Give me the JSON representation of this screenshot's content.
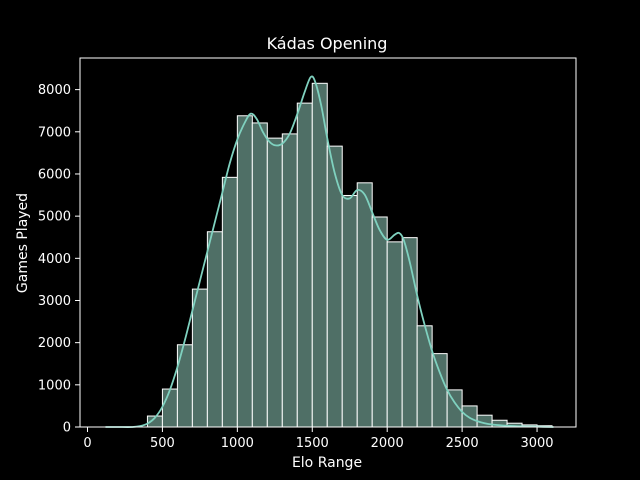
{
  "chart_data": {
    "type": "bar",
    "title": "Kádas Opening",
    "xlabel": "Elo Range",
    "ylabel": "Games Played",
    "xlim": [
      -50,
      3260
    ],
    "ylim": [
      0,
      8750
    ],
    "xticks": [
      0,
      500,
      1000,
      1500,
      2000,
      2500,
      3000
    ],
    "yticks": [
      0,
      1000,
      2000,
      3000,
      4000,
      5000,
      6000,
      7000,
      8000
    ],
    "bin_width": 100,
    "bins": [
      {
        "x0": 400,
        "x1": 500,
        "value": 260
      },
      {
        "x0": 500,
        "x1": 600,
        "value": 900
      },
      {
        "x0": 600,
        "x1": 700,
        "value": 1950
      },
      {
        "x0": 700,
        "x1": 800,
        "value": 3270
      },
      {
        "x0": 800,
        "x1": 900,
        "value": 4630
      },
      {
        "x0": 900,
        "x1": 1000,
        "value": 5920
      },
      {
        "x0": 1000,
        "x1": 1100,
        "value": 7380
      },
      {
        "x0": 1100,
        "x1": 1200,
        "value": 7210
      },
      {
        "x0": 1200,
        "x1": 1300,
        "value": 6850
      },
      {
        "x0": 1300,
        "x1": 1400,
        "value": 6950
      },
      {
        "x0": 1400,
        "x1": 1500,
        "value": 7680
      },
      {
        "x0": 1500,
        "x1": 1600,
        "value": 8150
      },
      {
        "x0": 1600,
        "x1": 1700,
        "value": 6660
      },
      {
        "x0": 1700,
        "x1": 1800,
        "value": 5490
      },
      {
        "x0": 1800,
        "x1": 1900,
        "value": 5790
      },
      {
        "x0": 1900,
        "x1": 2000,
        "value": 4980
      },
      {
        "x0": 2000,
        "x1": 2100,
        "value": 4390
      },
      {
        "x0": 2100,
        "x1": 2200,
        "value": 4490
      },
      {
        "x0": 2200,
        "x1": 2300,
        "value": 2400
      },
      {
        "x0": 2300,
        "x1": 2400,
        "value": 1740
      },
      {
        "x0": 2400,
        "x1": 2500,
        "value": 880
      },
      {
        "x0": 2500,
        "x1": 2600,
        "value": 500
      },
      {
        "x0": 2600,
        "x1": 2700,
        "value": 280
      },
      {
        "x0": 2700,
        "x1": 2800,
        "value": 160
      },
      {
        "x0": 2800,
        "x1": 2900,
        "value": 90
      },
      {
        "x0": 2900,
        "x1": 3000,
        "value": 50
      },
      {
        "x0": 3000,
        "x1": 3100,
        "value": 30
      }
    ],
    "kde": {
      "x": [
        120,
        200,
        300,
        350,
        400,
        450,
        500,
        550,
        600,
        650,
        700,
        750,
        800,
        850,
        900,
        950,
        1000,
        1050,
        1090,
        1130,
        1170,
        1210,
        1250,
        1300,
        1350,
        1400,
        1450,
        1490,
        1520,
        1560,
        1600,
        1650,
        1700,
        1750,
        1800,
        1850,
        1900,
        1950,
        2000,
        2050,
        2080,
        2110,
        2150,
        2200,
        2250,
        2300,
        2350,
        2400,
        2450,
        2500,
        2550,
        2600,
        2650,
        2700,
        2800,
        2900,
        3000,
        3110
      ],
      "y": [
        0,
        0,
        0,
        20,
        80,
        220,
        480,
        880,
        1420,
        2060,
        2760,
        3460,
        4160,
        4860,
        5560,
        6260,
        6820,
        7220,
        7430,
        7300,
        7000,
        6780,
        6680,
        6720,
        6960,
        7420,
        7950,
        8300,
        8180,
        7620,
        6850,
        6020,
        5500,
        5420,
        5620,
        5510,
        5090,
        4670,
        4440,
        4560,
        4600,
        4440,
        3920,
        3120,
        2420,
        1800,
        1300,
        880,
        580,
        360,
        220,
        140,
        90,
        60,
        30,
        15,
        8,
        0
      ]
    },
    "bar_color": "#4f6f66",
    "bar_edge_color": "#ffffff",
    "kde_color": "#7fd1bf",
    "background_color": "#000000",
    "frame_color": "#ffffff",
    "grid": false,
    "legend": "none"
  }
}
